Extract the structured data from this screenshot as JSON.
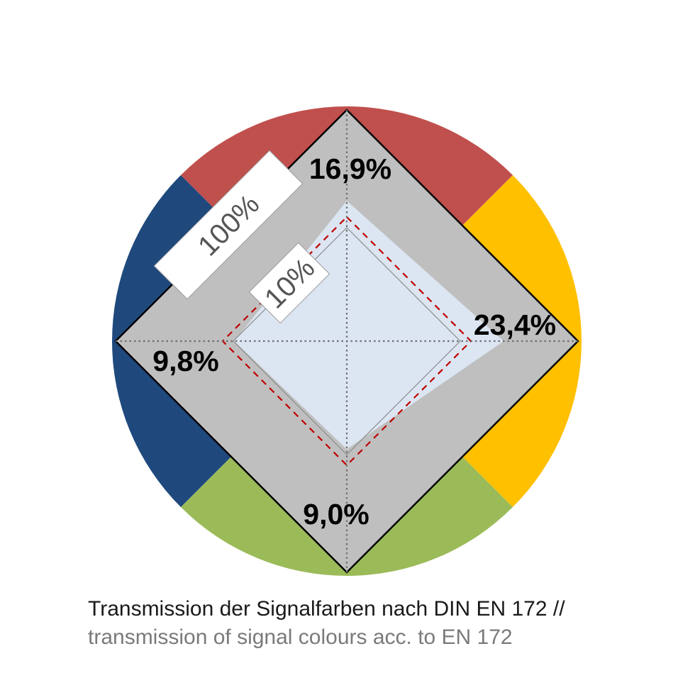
{
  "chart_data": {
    "type": "radar",
    "axes": [
      {
        "color_name": "red",
        "color": "#C0504D",
        "value": 16.9,
        "label": "16,9%"
      },
      {
        "color_name": "yellow",
        "color": "#FFC000",
        "value": 23.4,
        "label": "23,4%"
      },
      {
        "color_name": "green",
        "color": "#9BBB59",
        "value": 9.0,
        "label": "9,0%"
      },
      {
        "color_name": "blue",
        "color": "#1F497D",
        "value": 9.8,
        "label": "9,8%"
      }
    ],
    "scale": "log",
    "rings": [
      {
        "value": 100,
        "label": "100%"
      },
      {
        "value": 10,
        "label": "10%"
      }
    ],
    "reference_line": {
      "value": 10,
      "style": "dashed",
      "color": "#C00000"
    },
    "colors": {
      "grey_area": "#BFBFBF",
      "data_fill": "#DCE6F2"
    }
  },
  "caption": {
    "de": "Transmission der Signalfarben nach DIN EN 172 //",
    "en": "transmission of signal colours acc. to EN 172"
  }
}
